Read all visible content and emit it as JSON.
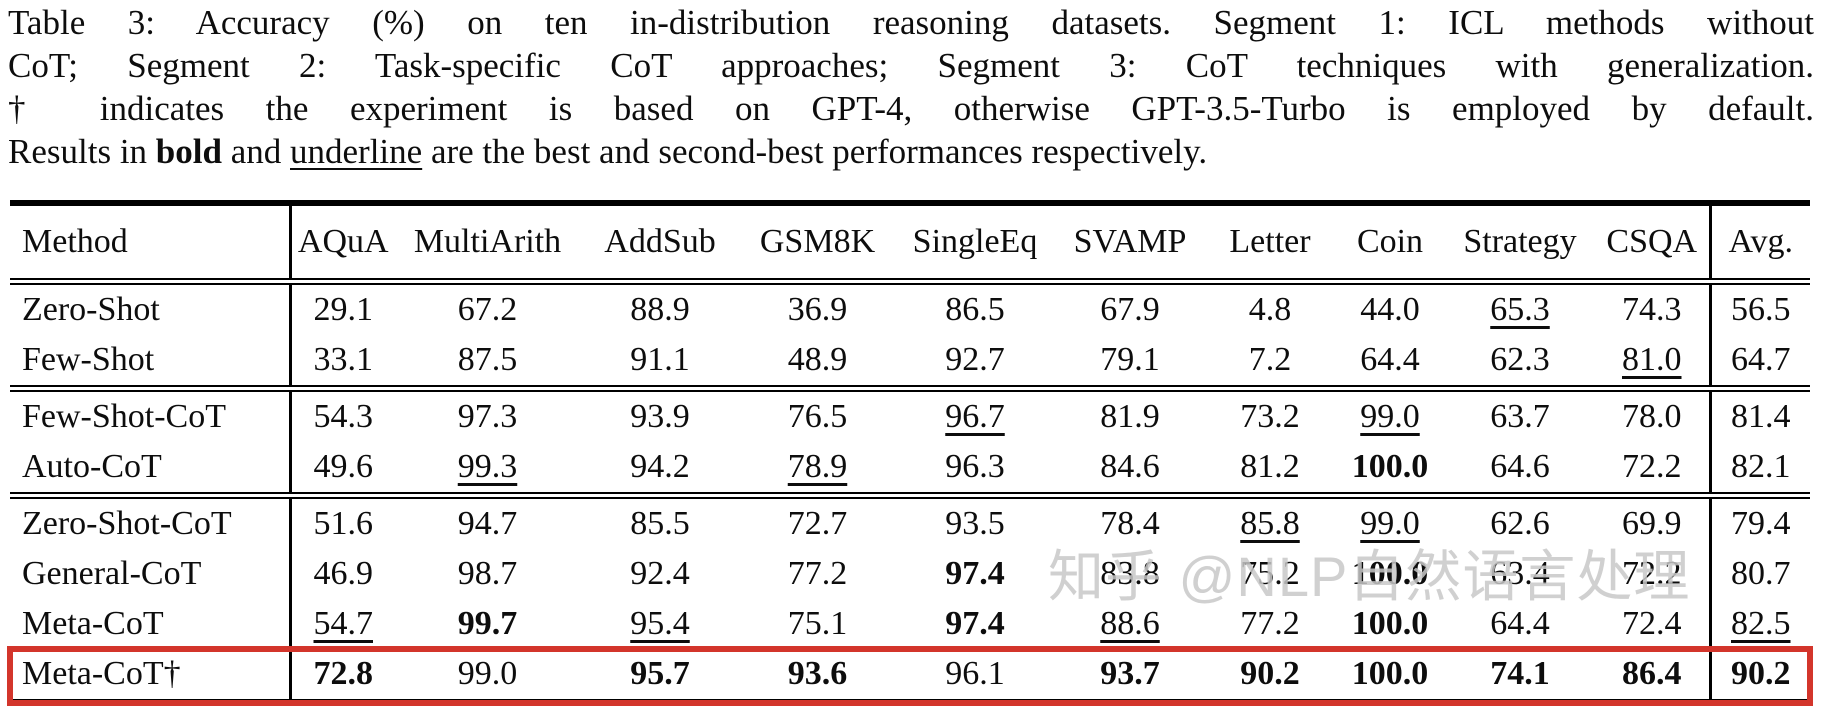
{
  "caption": {
    "line1": "Table 3: Accuracy (%) on ten in-distribution reasoning datasets. Segment 1: ICL methods without",
    "line2": "CoT; Segment 2: Task-specific CoT approaches; Segment 3: CoT techniques with generalization.",
    "line3": "† indicates the experiment is based on GPT-4, otherwise GPT-3.5-Turbo is employed by default.",
    "line4": {
      "pre": "Results in ",
      "bold_word": "bold",
      "mid": " and ",
      "underline_word": "underline",
      "post": " are the best and second-best performances respectively."
    }
  },
  "table": {
    "value_prefix_legend": {
      "*": "bold = best result",
      "_": "underlined = second-best result"
    },
    "columns": [
      "Method",
      "AQuA",
      "MultiArith",
      "AddSub",
      "GSM8K",
      "SingleEq",
      "SVAMP",
      "Letter",
      "Coin",
      "Strategy",
      "CSQA",
      "Avg."
    ],
    "segments": [
      {
        "rows": [
          {
            "method": "Zero-Shot",
            "values": [
              "29.1",
              "67.2",
              "88.9",
              "36.9",
              "86.5",
              "67.9",
              "4.8",
              "44.0",
              "_65.3",
              "74.3",
              "56.5"
            ]
          },
          {
            "method": "Few-Shot",
            "values": [
              "33.1",
              "87.5",
              "91.1",
              "48.9",
              "92.7",
              "79.1",
              "7.2",
              "64.4",
              "62.3",
              "_81.0",
              "64.7"
            ]
          }
        ]
      },
      {
        "rows": [
          {
            "method": "Few-Shot-CoT",
            "values": [
              "54.3",
              "97.3",
              "93.9",
              "76.5",
              "_96.7",
              "81.9",
              "73.2",
              "_99.0",
              "63.7",
              "78.0",
              "81.4"
            ]
          },
          {
            "method": "Auto-CoT",
            "values": [
              "49.6",
              "_99.3",
              "94.2",
              "_78.9",
              "96.3",
              "84.6",
              "81.2",
              "*100.0",
              "64.6",
              "72.2",
              "82.1"
            ]
          }
        ]
      },
      {
        "rows": [
          {
            "method": "Zero-Shot-CoT",
            "values": [
              "51.6",
              "94.7",
              "85.5",
              "72.7",
              "93.5",
              "78.4",
              "_85.8",
              "_99.0",
              "62.6",
              "69.9",
              "79.4"
            ]
          },
          {
            "method": "General-CoT",
            "values": [
              "46.9",
              "98.7",
              "92.4",
              "77.2",
              "*97.4",
              "83.8",
              "75.2",
              "*100.0",
              "63.4",
              "72.2",
              "80.7"
            ]
          },
          {
            "method": "Meta-CoT",
            "values": [
              "_54.7",
              "*99.7",
              "_95.4",
              "75.1",
              "*97.4",
              "_88.6",
              "77.2",
              "*100.0",
              "64.4",
              "72.4",
              "_82.5"
            ]
          },
          {
            "method": "Meta-CoT†",
            "values": [
              "*72.8",
              "99.0",
              "*95.7",
              "*93.6",
              "96.1",
              "*93.7",
              "*90.2",
              "*100.0",
              "*74.1",
              "*86.4",
              "*90.2"
            ],
            "highlight": true
          }
        ]
      }
    ]
  },
  "annotations": {
    "highlight_box_color": "#d3352b",
    "highlighted_row": "Meta-CoT†",
    "watermark_text": "知乎 @NLP自然语言处理"
  }
}
